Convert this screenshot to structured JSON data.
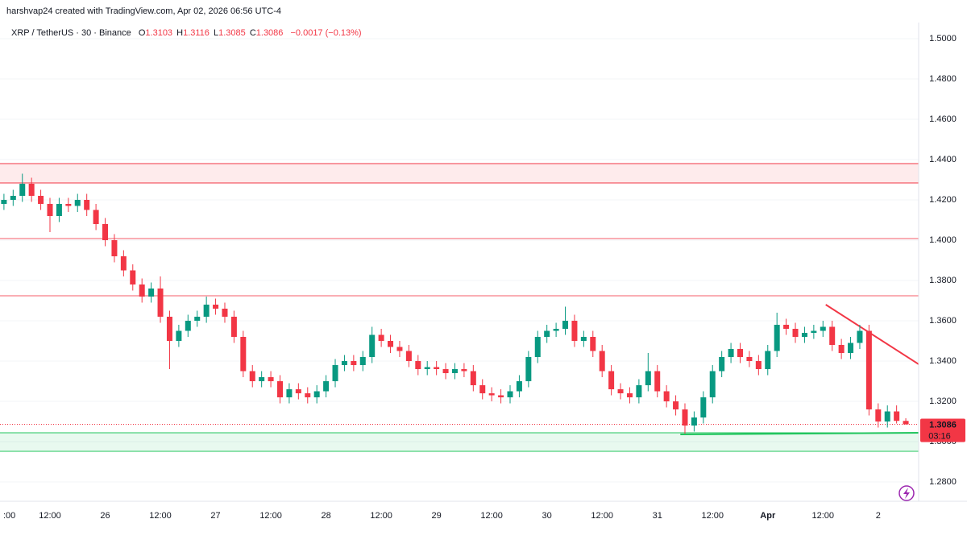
{
  "chart_data": {
    "type": "candlestick",
    "title": "harshvap24 created with TradingView.com, Apr 02, 2026 06:56 UTC-4",
    "legend": {
      "symbol": "XRP / TetherUS · 30 · Binance",
      "open_label": "O",
      "open": "1.3103",
      "high_label": "H",
      "high": "1.3116",
      "low_label": "L",
      "low": "1.3085",
      "close_label": "C",
      "close": "1.3086",
      "change": "−0.0017 (−0.13%)"
    },
    "categories": [
      ":00",
      null,
      null,
      null,
      null,
      "12:00",
      null,
      null,
      null,
      null,
      null,
      "26",
      null,
      null,
      null,
      null,
      null,
      "12:00",
      null,
      null,
      null,
      null,
      null,
      "27",
      null,
      null,
      null,
      null,
      null,
      "12:00",
      null,
      null,
      null,
      null,
      null,
      "28",
      null,
      null,
      null,
      null,
      null,
      "12:00",
      null,
      null,
      null,
      null,
      null,
      "29",
      null,
      null,
      null,
      null,
      null,
      "12:00",
      null,
      null,
      null,
      null,
      null,
      "30",
      null,
      null,
      null,
      null,
      null,
      "12:00",
      null,
      null,
      null,
      null,
      null,
      "31",
      null,
      null,
      null,
      null,
      null,
      "12:00",
      null,
      null,
      null,
      null,
      null,
      "Apr",
      null,
      null,
      null,
      null,
      null,
      "12:00",
      null,
      null,
      null,
      null,
      null,
      "2",
      null,
      null,
      null
    ],
    "open": [
      1.418,
      1.42,
      1.422,
      1.428,
      1.422,
      1.418,
      1.412,
      1.418,
      1.417,
      1.42,
      1.415,
      1.408,
      1.4,
      1.392,
      1.385,
      1.378,
      1.372,
      1.376,
      1.362,
      1.35,
      1.355,
      1.36,
      1.362,
      1.368,
      1.366,
      1.362,
      1.352,
      1.335,
      1.33,
      1.332,
      1.33,
      1.322,
      1.326,
      1.324,
      1.322,
      1.325,
      1.33,
      1.338,
      1.34,
      1.338,
      1.342,
      1.353,
      1.35,
      1.347,
      1.345,
      1.34,
      1.336,
      1.337,
      1.336,
      1.334,
      1.336,
      1.335,
      1.328,
      1.324,
      1.323,
      1.322,
      1.325,
      1.33,
      1.342,
      1.352,
      1.355,
      1.356,
      1.36,
      1.35,
      1.352,
      1.345,
      1.335,
      1.326,
      1.324,
      1.322,
      1.328,
      1.335,
      1.325,
      1.32,
      1.316,
      1.308,
      1.312,
      1.322,
      1.335,
      1.342,
      1.346,
      1.342,
      1.34,
      1.336,
      1.345,
      1.358,
      1.356,
      1.352,
      1.354,
      1.355,
      1.357,
      1.348,
      1.344,
      1.349,
      1.355,
      1.316,
      1.31,
      1.315,
      1.3103
    ],
    "high": [
      1.423,
      1.425,
      1.433,
      1.431,
      1.425,
      1.421,
      1.421,
      1.421,
      1.423,
      1.423,
      1.418,
      1.411,
      1.403,
      1.395,
      1.388,
      1.381,
      1.379,
      1.382,
      1.365,
      1.358,
      1.363,
      1.365,
      1.372,
      1.371,
      1.369,
      1.365,
      1.355,
      1.338,
      1.335,
      1.335,
      1.333,
      1.329,
      1.329,
      1.327,
      1.328,
      1.333,
      1.341,
      1.343,
      1.343,
      1.345,
      1.357,
      1.356,
      1.353,
      1.35,
      1.348,
      1.343,
      1.34,
      1.34,
      1.339,
      1.339,
      1.339,
      1.338,
      1.331,
      1.327,
      1.326,
      1.328,
      1.333,
      1.345,
      1.355,
      1.358,
      1.359,
      1.367,
      1.363,
      1.355,
      1.355,
      1.348,
      1.338,
      1.329,
      1.327,
      1.331,
      1.344,
      1.338,
      1.328,
      1.323,
      1.319,
      1.315,
      1.325,
      1.338,
      1.345,
      1.349,
      1.349,
      1.345,
      1.343,
      1.348,
      1.364,
      1.361,
      1.359,
      1.357,
      1.358,
      1.36,
      1.36,
      1.351,
      1.352,
      1.358,
      1.358,
      1.319,
      1.318,
      1.318,
      1.3116
    ],
    "low": [
      1.415,
      1.417,
      1.419,
      1.419,
      1.415,
      1.404,
      1.409,
      1.414,
      1.414,
      1.412,
      1.405,
      1.397,
      1.389,
      1.382,
      1.375,
      1.369,
      1.369,
      1.359,
      1.336,
      1.347,
      1.352,
      1.357,
      1.359,
      1.363,
      1.359,
      1.349,
      1.332,
      1.327,
      1.327,
      1.327,
      1.319,
      1.319,
      1.321,
      1.319,
      1.319,
      1.322,
      1.327,
      1.335,
      1.335,
      1.335,
      1.339,
      1.347,
      1.344,
      1.342,
      1.337,
      1.333,
      1.333,
      1.333,
      1.331,
      1.331,
      1.332,
      1.325,
      1.321,
      1.32,
      1.319,
      1.319,
      1.322,
      1.327,
      1.339,
      1.349,
      1.352,
      1.353,
      1.347,
      1.347,
      1.342,
      1.332,
      1.323,
      1.321,
      1.319,
      1.319,
      1.325,
      1.322,
      1.317,
      1.313,
      1.304,
      1.305,
      1.309,
      1.319,
      1.332,
      1.339,
      1.339,
      1.337,
      1.333,
      1.333,
      1.342,
      1.353,
      1.349,
      1.349,
      1.351,
      1.352,
      1.345,
      1.341,
      1.341,
      1.346,
      1.313,
      1.307,
      1.307,
      1.309,
      1.3085
    ],
    "close": [
      1.42,
      1.422,
      1.428,
      1.422,
      1.418,
      1.412,
      1.418,
      1.417,
      1.42,
      1.415,
      1.408,
      1.4,
      1.392,
      1.385,
      1.378,
      1.372,
      1.376,
      1.362,
      1.35,
      1.355,
      1.36,
      1.362,
      1.368,
      1.366,
      1.362,
      1.352,
      1.335,
      1.33,
      1.332,
      1.33,
      1.322,
      1.326,
      1.324,
      1.322,
      1.325,
      1.33,
      1.338,
      1.34,
      1.338,
      1.342,
      1.353,
      1.35,
      1.347,
      1.345,
      1.34,
      1.336,
      1.337,
      1.336,
      1.334,
      1.336,
      1.335,
      1.328,
      1.324,
      1.323,
      1.322,
      1.325,
      1.33,
      1.342,
      1.352,
      1.355,
      1.356,
      1.36,
      1.35,
      1.352,
      1.345,
      1.335,
      1.326,
      1.324,
      1.322,
      1.328,
      1.335,
      1.325,
      1.32,
      1.316,
      1.308,
      1.312,
      1.322,
      1.335,
      1.342,
      1.346,
      1.342,
      1.34,
      1.336,
      1.345,
      1.358,
      1.356,
      1.352,
      1.354,
      1.355,
      1.357,
      1.348,
      1.344,
      1.349,
      1.355,
      1.316,
      1.31,
      1.315,
      1.3103,
      1.3086
    ],
    "up_color": "#089981",
    "down_color": "#f23645",
    "ylim": [
      1.2712,
      1.508
    ],
    "yticks": [
      {
        "value": 1.28,
        "label": "1.2800"
      },
      {
        "value": 1.3,
        "label": "1.3000"
      },
      {
        "value": 1.32,
        "label": "1.3200"
      },
      {
        "value": 1.34,
        "label": "1.3400"
      },
      {
        "value": 1.36,
        "label": "1.3600"
      },
      {
        "value": 1.38,
        "label": "1.3800"
      },
      {
        "value": 1.4,
        "label": "1.4000"
      },
      {
        "value": 1.42,
        "label": "1.4200"
      },
      {
        "value": 1.44,
        "label": "1.4400"
      },
      {
        "value": 1.46,
        "label": "1.4600"
      },
      {
        "value": 1.48,
        "label": "1.4800"
      },
      {
        "value": 1.5,
        "label": "1.5000"
      }
    ],
    "zones": [
      {
        "from": 1.438,
        "to": 1.4284,
        "color": "#f23645"
      },
      {
        "from": 1.3044,
        "to": 1.2952,
        "color": "#22c55e"
      }
    ],
    "levels": [
      {
        "value": 1.4008,
        "color": "#f23645"
      },
      {
        "value": 1.3724,
        "color": "#f23645"
      }
    ],
    "trendlines": [
      {
        "color": "#f23645",
        "points": [
          [
            89.3,
            1.368
          ],
          [
            99.4,
            1.3384
          ]
        ]
      },
      {
        "color": "#22c55e",
        "points": [
          [
            73.5,
            1.3036
          ],
          [
            99.4,
            1.3044
          ]
        ]
      }
    ],
    "last_price": {
      "value": 1.3086,
      "label": "1.3086"
    },
    "countdown": "03:16"
  }
}
